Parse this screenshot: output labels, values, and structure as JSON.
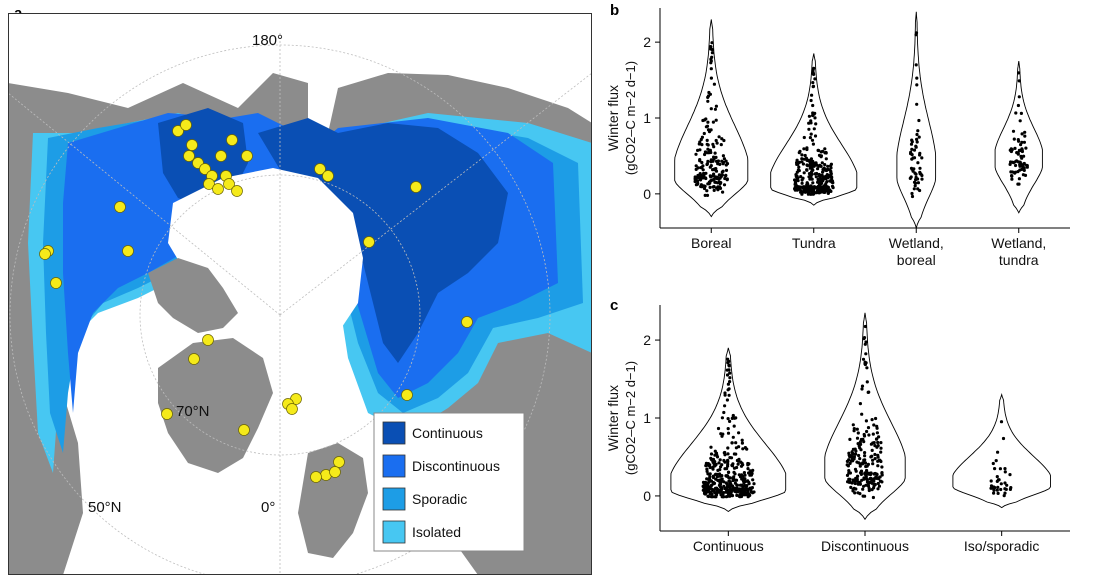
{
  "panels": {
    "a": "a",
    "b": "b",
    "c": "c"
  },
  "map": {
    "labels": {
      "lon_180": "180°",
      "lat_70": "70°N",
      "lat_50": "50°N",
      "lon_0": "0°"
    },
    "colors": {
      "land": "#8c8c8c",
      "ocean": "#ffffff",
      "continuous": "#0a4fb4",
      "discontinuous": "#1a6ef0",
      "sporadic": "#1d9de6",
      "isolated": "#47c7f2",
      "site": "#f5ea1a"
    },
    "legend": [
      {
        "label": "Continuous",
        "color": "#0a4fb4"
      },
      {
        "label": "Discontinuous",
        "color": "#1a6ef0"
      },
      {
        "label": "Sporadic",
        "color": "#1d9de6"
      },
      {
        "label": "Isolated",
        "color": "#47c7f2"
      }
    ]
  },
  "chart_data": [
    {
      "type": "violin",
      "panel": "b",
      "ylabel_line1": "Winter flux",
      "ylabel_line2": "(gCO2–C m−2 d−1)",
      "categories": [
        "Boreal",
        "Tundra",
        "Wetland, boreal",
        "Wetland, tundra"
      ],
      "category_lines": [
        [
          "Boreal"
        ],
        [
          "Tundra"
        ],
        [
          "Wetland,",
          "boreal"
        ],
        [
          "Wetland,",
          "tundra"
        ]
      ],
      "yticks": [
        0,
        1,
        2
      ],
      "ylim": [
        -0.45,
        2.45
      ],
      "violins": [
        {
          "category": "Boreal",
          "min": -0.3,
          "max": 2.3,
          "mode": 0.25,
          "width": 0.85,
          "n": 190
        },
        {
          "category": "Tundra",
          "min": -0.15,
          "max": 1.85,
          "mode": 0.1,
          "width": 1.0,
          "n": 320
        },
        {
          "category": "Wetland, boreal",
          "min": -0.45,
          "max": 2.4,
          "mode": 0.3,
          "width": 0.45,
          "n": 55
        },
        {
          "category": "Wetland, tundra",
          "min": -0.25,
          "max": 1.75,
          "mode": 0.45,
          "width": 0.55,
          "n": 70
        }
      ]
    },
    {
      "type": "violin",
      "panel": "c",
      "ylabel_line1": "Winter flux",
      "ylabel_line2": "(gCO2–C m−2 d−1)",
      "categories": [
        "Continuous",
        "Discontinuous",
        "Iso/sporadic"
      ],
      "category_lines": [
        [
          "Continuous"
        ],
        [
          "Discontinuous"
        ],
        [
          "Iso/sporadic"
        ]
      ],
      "yticks": [
        0,
        1,
        2
      ],
      "ylim": [
        -0.45,
        2.45
      ],
      "violins": [
        {
          "category": "Continuous",
          "min": -0.2,
          "max": 1.9,
          "mode": 0.1,
          "width": 1.0,
          "n": 380
        },
        {
          "category": "Discontinuous",
          "min": -0.3,
          "max": 2.35,
          "mode": 0.3,
          "width": 0.7,
          "n": 220
        },
        {
          "category": "Iso/sporadic",
          "min": -0.15,
          "max": 1.3,
          "mode": 0.15,
          "width": 0.85,
          "n": 35
        }
      ]
    }
  ]
}
